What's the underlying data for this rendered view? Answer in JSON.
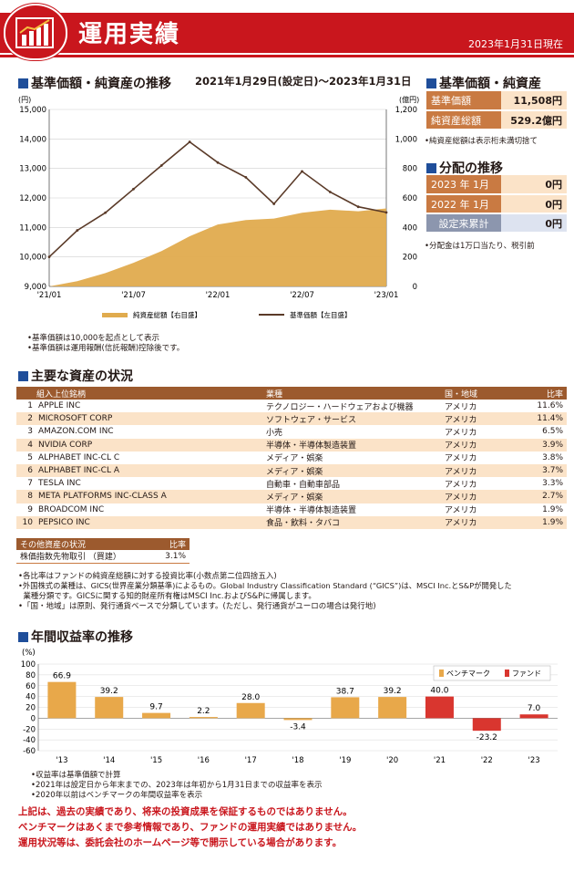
{
  "header": {
    "title": "運用実績",
    "as_of": "2023年1月31日現在"
  },
  "nav_section": {
    "title": "基準価額・純資産の推移",
    "period": "2021年1月29日(設定日)～2023年1月31日",
    "notes": [
      "•基準価額は10,000を起点として表示",
      "•基準価額は運用報酬(信託報酬)控除後です。"
    ]
  },
  "price_section": {
    "title": "基準価額・純資産",
    "rows": [
      {
        "label": "基準価額",
        "value": "11,508円"
      },
      {
        "label": "純資産総額",
        "value": "529.2億円"
      }
    ],
    "note": "•純資産総額は表示桁未満切捨て"
  },
  "dist_section": {
    "title": "分配の推移",
    "rows": [
      {
        "label": "2023 年  1月",
        "value": "0円"
      },
      {
        "label": "2022 年  1月",
        "value": "0円"
      },
      {
        "label": "設定来累計",
        "value": "0円"
      }
    ],
    "note": "•分配金は1万口当たり、税引前"
  },
  "holdings": {
    "title": "主要な資産の状況",
    "headers": [
      "組入上位銘柄",
      "業種",
      "国・地域",
      "比率"
    ],
    "rows": [
      {
        "rank": "1",
        "name": "APPLE INC",
        "sector": "テクノロジー・ハードウェアおよび機器",
        "country": "アメリカ",
        "ratio": "11.6%"
      },
      {
        "rank": "2",
        "name": "MICROSOFT CORP",
        "sector": "ソフトウェア・サービス",
        "country": "アメリカ",
        "ratio": "11.4%"
      },
      {
        "rank": "3",
        "name": "AMAZON.COM INC",
        "sector": "小売",
        "country": "アメリカ",
        "ratio": "6.5%"
      },
      {
        "rank": "4",
        "name": "NVIDIA CORP",
        "sector": "半導体・半導体製造装置",
        "country": "アメリカ",
        "ratio": "3.9%"
      },
      {
        "rank": "5",
        "name": "ALPHABET INC-CL C",
        "sector": "メディア・娯楽",
        "country": "アメリカ",
        "ratio": "3.8%"
      },
      {
        "rank": "6",
        "name": "ALPHABET INC-CL A",
        "sector": "メディア・娯楽",
        "country": "アメリカ",
        "ratio": "3.7%"
      },
      {
        "rank": "7",
        "name": "TESLA INC",
        "sector": "自動車・自動車部品",
        "country": "アメリカ",
        "ratio": "3.3%"
      },
      {
        "rank": "8",
        "name": "META PLATFORMS INC-CLASS A",
        "sector": "メディア・娯楽",
        "country": "アメリカ",
        "ratio": "2.7%"
      },
      {
        "rank": "9",
        "name": "BROADCOM INC",
        "sector": "半導体・半導体製造装置",
        "country": "アメリカ",
        "ratio": "1.9%"
      },
      {
        "rank": "10",
        "name": "PEPSICO INC",
        "sector": "食品・飲料・タバコ",
        "country": "アメリカ",
        "ratio": "1.9%"
      }
    ],
    "other": {
      "headers": [
        "その他資産の状況",
        "比率"
      ],
      "label": "株価指数先物取引 （買建）",
      "ratio": "3.1%"
    },
    "notes": [
      "•各比率はファンドの純資産総額に対する投資比率(小数点第二位四捨五入)",
      "•外国株式の業種は、GICS(世界産業分類基準)によるもの。Global Industry Classification Standard (“GICS”)は、MSCI Inc.とS&Pが開発した",
      "  業種分類です。GICSに関する知的財産所有権はMSCI Inc.およびS&Pに帰属します。",
      "•「国・地域」は原則、発行通貨ベースで分類しています。(ただし、発行通貨がユーロの場合は発行地)"
    ]
  },
  "returns_section": {
    "title": "年間収益率の推移",
    "notes": [
      "•収益率は基準価額で計算",
      "•2021年は設定日から年末までの、2023年は年初から1月31日までの収益率を表示",
      "•2020年以前はベンチマークの年間収益率を表示"
    ]
  },
  "disclaimer": [
    "上記は、過去の実績であり、将来の投資成果を保証するものではありません。",
    "ベンチマークはあくまで参考情報であり、ファンドの運用実績ではありません。",
    "運用状況等は、委託会社のホームページ等で開示している場合があります。"
  ],
  "chart_data": [
    {
      "type": "line",
      "title": "",
      "y_left_unit": "(円)",
      "y_right_unit": "(億円)",
      "x_ticks": [
        "'21/01",
        "'21/07",
        "'22/01",
        "'22/07",
        "'23/01"
      ],
      "ylim_left": [
        9000,
        15000
      ],
      "ylim_right": [
        0,
        1200
      ],
      "y_left_ticks": [
        "9,000",
        "10,000",
        "11,000",
        "12,000",
        "13,000",
        "14,000",
        "15,000"
      ],
      "y_right_ticks": [
        "0",
        "200",
        "400",
        "600",
        "800",
        "1,000",
        "1,200"
      ],
      "legend_position": "bottom",
      "series": [
        {
          "name": "純資産総額【右目盛】",
          "kind": "area",
          "axis": "right",
          "color": "#e0ab4e",
          "x": [
            "2021-01",
            "2021-03",
            "2021-05",
            "2021-07",
            "2021-09",
            "2021-11",
            "2022-01",
            "2022-03",
            "2022-05",
            "2022-07",
            "2022-09",
            "2022-11",
            "2023-01"
          ],
          "values": [
            0,
            35,
            90,
            160,
            240,
            340,
            420,
            450,
            460,
            500,
            520,
            510,
            529
          ]
        },
        {
          "name": "基準価額【左目盛】",
          "kind": "line",
          "axis": "left",
          "color": "#5a3a28",
          "x": [
            "2021-01",
            "2021-03",
            "2021-05",
            "2021-07",
            "2021-09",
            "2021-11",
            "2022-01",
            "2022-03",
            "2022-05",
            "2022-07",
            "2022-09",
            "2022-11",
            "2023-01"
          ],
          "values": [
            10000,
            10900,
            11500,
            12300,
            13100,
            13900,
            13200,
            12700,
            11800,
            12900,
            12200,
            11700,
            11508
          ]
        }
      ]
    },
    {
      "type": "bar",
      "title": "",
      "y_unit": "(%)",
      "ylim": [
        -60,
        100
      ],
      "y_ticks": [
        "100",
        "80",
        "60",
        "40",
        "20",
        "0",
        "-20",
        "-40",
        "-60"
      ],
      "categories": [
        "'13",
        "'14",
        "'15",
        "'16",
        "'17",
        "'18",
        "'19",
        "'20",
        "'21",
        "'22",
        "'23"
      ],
      "legend_position": "top-right",
      "series": [
        {
          "name": "ベンチマーク",
          "color": "#e8a84a",
          "values": [
            66.9,
            39.2,
            9.7,
            2.2,
            28.0,
            -3.4,
            38.7,
            39.2,
            null,
            null,
            null
          ]
        },
        {
          "name": "ファンド",
          "color": "#d9362f",
          "values": [
            null,
            null,
            null,
            null,
            null,
            null,
            null,
            null,
            40.0,
            -23.2,
            7.0
          ]
        }
      ],
      "data_labels": [
        "66.9",
        "39.2",
        "9.7",
        "2.2",
        "28.0",
        "-3.4",
        "38.7",
        "39.2",
        "40.0",
        "-23.2",
        "7.0"
      ]
    }
  ]
}
